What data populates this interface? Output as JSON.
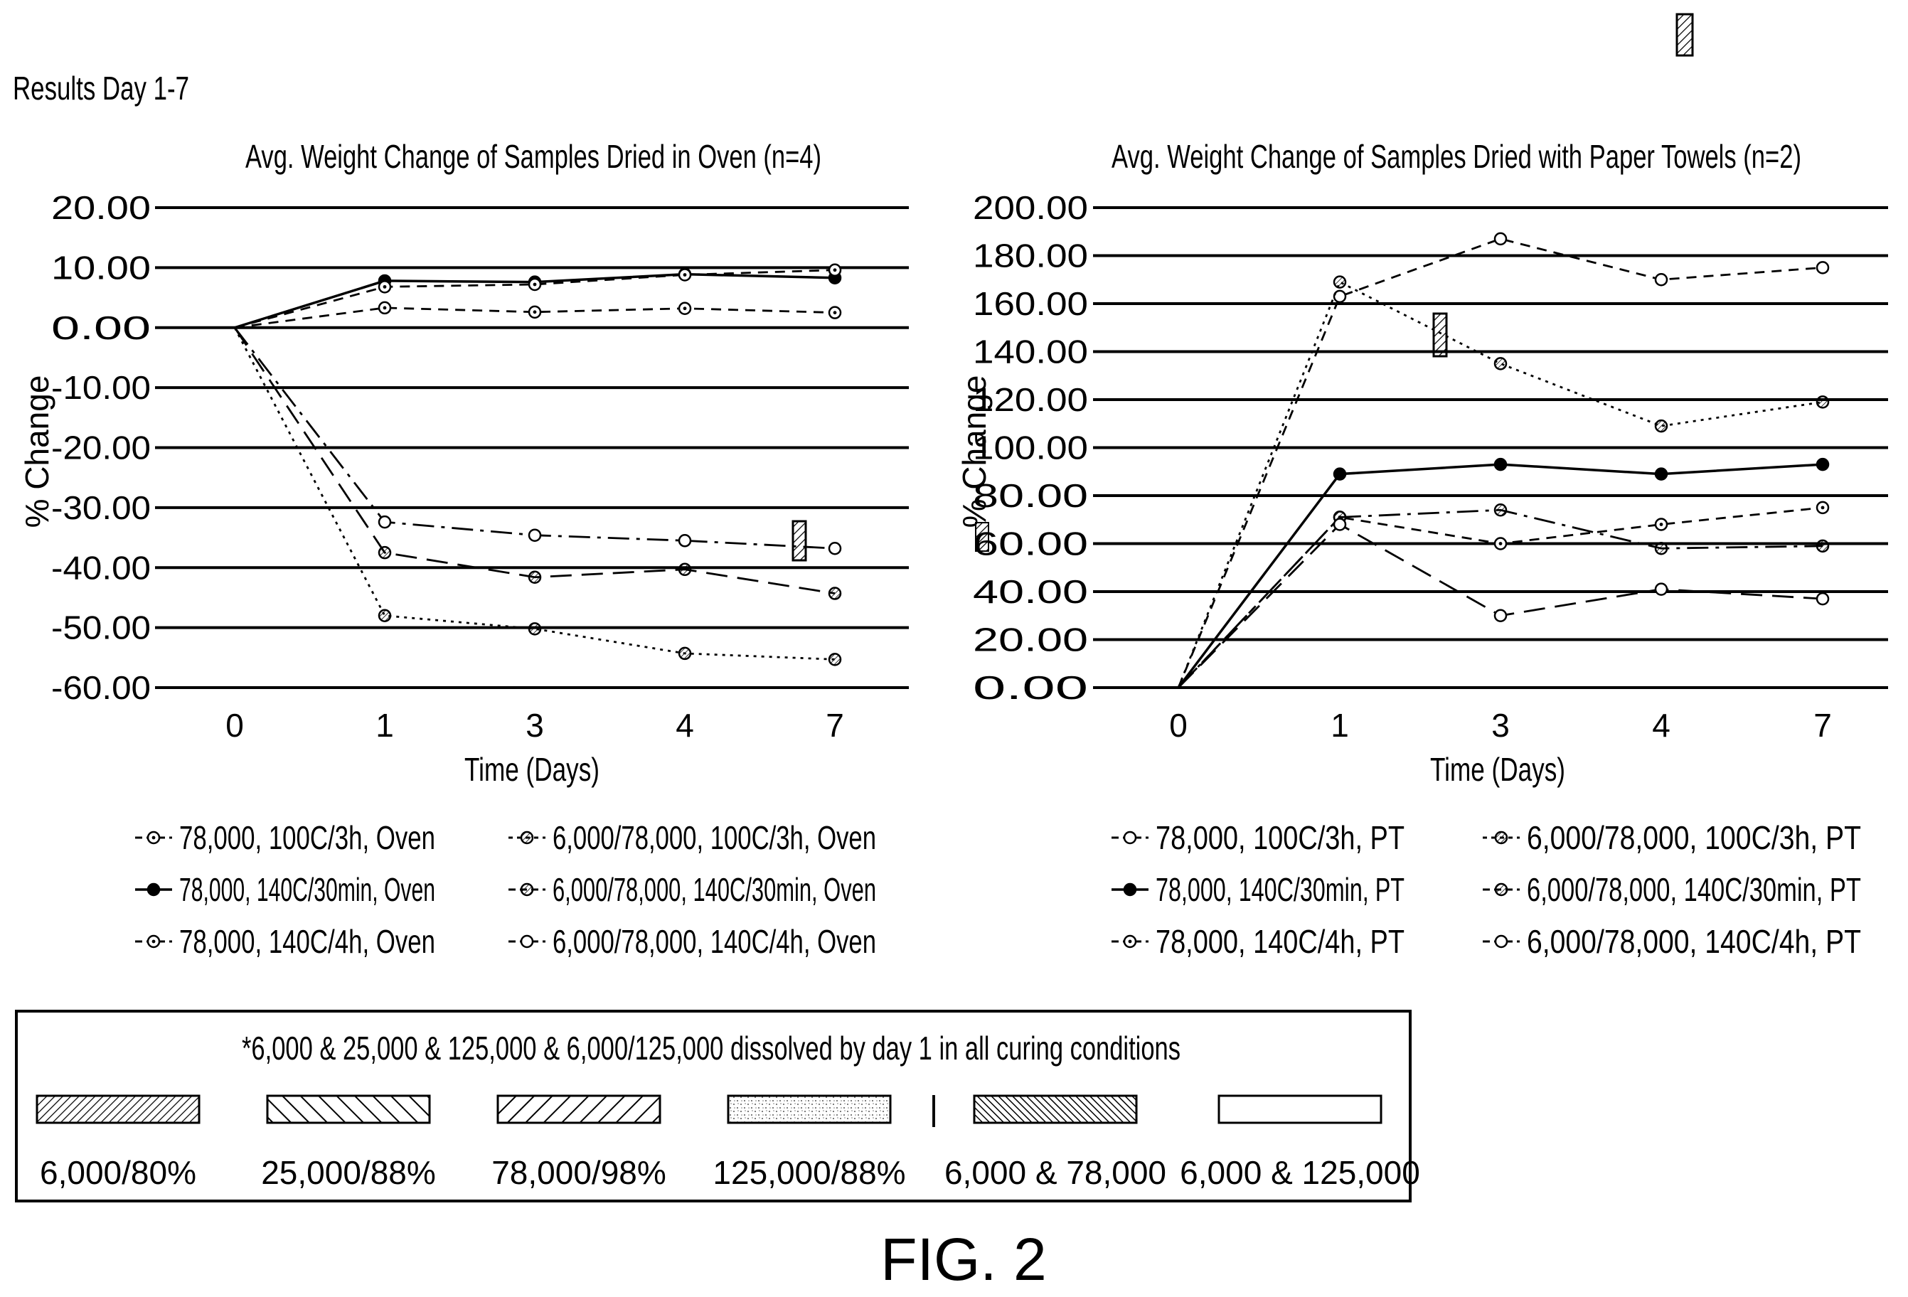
{
  "header": {
    "caption": "Results Day 1-7"
  },
  "figure_label": "FIG. 2",
  "chart_data": [
    {
      "type": "line",
      "title": "Avg. Weight Change of Samples Dried in Oven (n=4)",
      "xlabel": "Time (Days)",
      "ylabel": "% Change",
      "categories": [
        "0",
        "1",
        "3",
        "4",
        "7"
      ],
      "ylim": [
        -60,
        20
      ],
      "yticks": [
        "20.00",
        "10.00",
        "0.00",
        "-10.00",
        "-20.00",
        "-30.00",
        "-40.00",
        "-50.00",
        "-60.00"
      ],
      "grid": "horizontal",
      "legend_position": "bottom",
      "series": [
        {
          "name": "78,000, 100C/3h, Oven",
          "values": [
            0,
            3.3,
            2.6,
            3.2,
            2.5
          ],
          "dash": "dashed",
          "marker": "open-dot"
        },
        {
          "name": "78,000, 140C/30min, Oven",
          "values": [
            0,
            7.8,
            7.6,
            8.9,
            8.3
          ],
          "dash": "solid",
          "marker": "filled"
        },
        {
          "name": "78,000, 140C/4h, Oven",
          "values": [
            0,
            6.8,
            7.2,
            8.8,
            9.6
          ],
          "dash": "dashed",
          "marker": "dotted"
        },
        {
          "name": "6,000/78,000, 100C/3h, Oven",
          "values": [
            0,
            -48.0,
            -50.2,
            -54.3,
            -55.3
          ],
          "dash": "dotted",
          "marker": "hatched"
        },
        {
          "name": "6,000/78,000, 140C/30min, Oven",
          "values": [
            0,
            -37.5,
            -41.6,
            -40.3,
            -44.3
          ],
          "dash": "longdash",
          "marker": "hatched"
        },
        {
          "name": "6,000/78,000, 140C/4h, Oven",
          "values": [
            0,
            -32.4,
            -34.6,
            -35.5,
            -36.8
          ],
          "dash": "dashdot",
          "marker": "open"
        }
      ]
    },
    {
      "type": "line",
      "title": "Avg. Weight Change of Samples Dried with Paper Towels (n=2)",
      "xlabel": "Time (Days)",
      "ylabel": "% Change",
      "categories": [
        "0",
        "1",
        "3",
        "4",
        "7"
      ],
      "ylim": [
        0,
        200
      ],
      "yticks": [
        "200.00",
        "180.00",
        "160.00",
        "140.00",
        "120.00",
        "100.00",
        "80.00",
        "60.00",
        "40.00",
        "20.00",
        "0.00"
      ],
      "grid": "horizontal",
      "legend_position": "bottom",
      "series": [
        {
          "name": "78,000, 100C/3h, PT",
          "values": [
            0,
            163,
            187,
            170,
            175
          ],
          "dash": "dashed",
          "marker": "open"
        },
        {
          "name": "78,000, 140C/30min, PT",
          "values": [
            0,
            89,
            93,
            89,
            93
          ],
          "dash": "solid",
          "marker": "filled"
        },
        {
          "name": "78,000, 140C/4h, PT",
          "values": [
            0,
            71,
            60,
            68,
            75
          ],
          "dash": "dashed",
          "marker": "dotted"
        },
        {
          "name": "6,000/78,000, 100C/3h, PT",
          "values": [
            0,
            169,
            135,
            109,
            119
          ],
          "dash": "dotted",
          "marker": "hatched"
        },
        {
          "name": "6,000/78,000, 140C/30min, PT",
          "values": [
            0,
            71,
            74,
            58,
            59
          ],
          "dash": "dashdot",
          "marker": "hatched"
        },
        {
          "name": "6,000/78,000, 140C/4h, PT",
          "values": [
            0,
            68,
            30,
            41,
            37
          ],
          "dash": "longdash",
          "marker": "open"
        }
      ]
    }
  ],
  "key_box": {
    "note": "*6,000 & 25,000 & 125,000 & 6,000/125,000 dissolved by day 1 in all curing conditions",
    "separator": "|",
    "items": [
      {
        "label": "6,000/80%",
        "pattern": "hatch-fine"
      },
      {
        "label": "25,000/88%",
        "pattern": "hatch-back"
      },
      {
        "label": "78,000/98%",
        "pattern": "hatch-wide"
      },
      {
        "label": "125,000/88%",
        "pattern": "stipple"
      },
      {
        "label": "6,000 & 78,000",
        "pattern": "crosshatch"
      },
      {
        "label": "6,000 & 125,000",
        "pattern": "blank"
      }
    ]
  }
}
